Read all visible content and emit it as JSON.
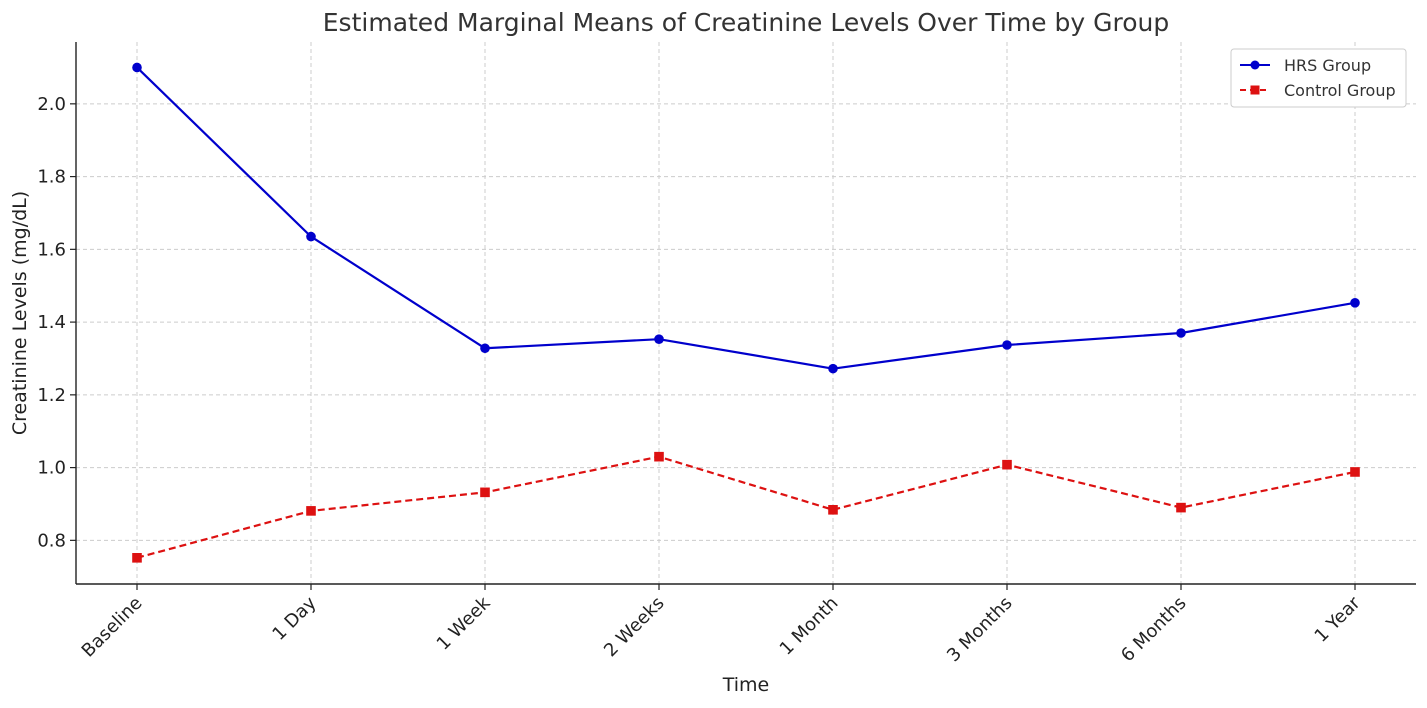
{
  "chart_data": {
    "type": "line",
    "title": "Estimated Marginal Means of Creatinine Levels Over Time by Group",
    "xlabel": "Time",
    "ylabel": "Creatinine Levels (mg/dL)",
    "categories": [
      "Baseline",
      "1 Day",
      "1 Week",
      "2 Weeks",
      "1 Month",
      "3 Months",
      "6 Months",
      "1 Year"
    ],
    "ylim": [
      0.68,
      2.17
    ],
    "yticks": [
      "0.8",
      "1.0",
      "1.2",
      "1.4",
      "1.6",
      "1.8",
      "2.0"
    ],
    "grid": true,
    "legend_position": "top-right",
    "series": [
      {
        "name": "HRS Group",
        "color": "#0000cc",
        "line_style": "solid",
        "marker": "circle",
        "values": [
          2.1,
          1.635,
          1.328,
          1.353,
          1.272,
          1.337,
          1.37,
          1.453
        ]
      },
      {
        "name": "Control Group",
        "color": "#dd1111",
        "line_style": "dashed",
        "marker": "square",
        "values": [
          0.752,
          0.881,
          0.932,
          1.03,
          0.884,
          1.008,
          0.89,
          0.988
        ]
      }
    ]
  }
}
